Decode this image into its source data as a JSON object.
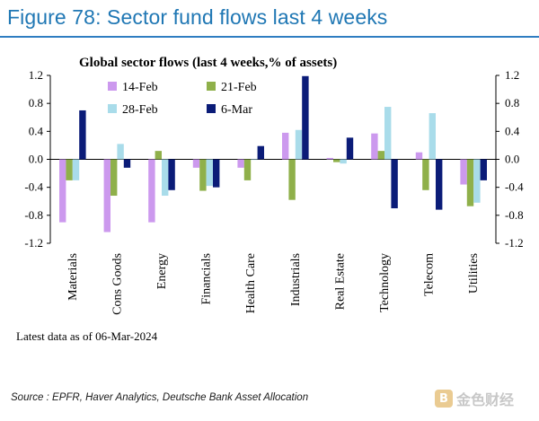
{
  "figure_title": "Figure 78: Sector fund flows last 4 weeks",
  "source": "Source : EPFR, Haver Analytics, Deutsche Bank Asset Allocation",
  "watermark": "金色财经",
  "colors": {
    "figure_title": "#1f77b4",
    "rule": "#2f7dc1",
    "14-Feb": "#cc99ee",
    "21-Feb": "#8fb04a",
    "28-Feb": "#a9dcea",
    "6-Mar": "#0b1c78"
  },
  "chart_data": {
    "type": "bar",
    "title": "Global sector flows (last 4 weeks,% of assets)",
    "xlabel": "",
    "ylabel": "",
    "ylim": [
      -1.2,
      1.2
    ],
    "yticks": [
      "1.2",
      "0.8",
      "0.4",
      "0.0",
      "-0.4",
      "-0.8",
      "-1.2"
    ],
    "ytick_values": [
      1.2,
      0.8,
      0.4,
      0.0,
      -0.4,
      -0.8,
      -1.2
    ],
    "secondary_y_axis": true,
    "grid": false,
    "legend_position": "top-left",
    "note": "Latest data as of 06-Mar-2024",
    "categories": [
      "Materials",
      "Cons Goods",
      "Energy",
      "Financials",
      "Health Care",
      "Industrials",
      "Real Estate",
      "Technology",
      "Telecom",
      "Utilities"
    ],
    "series": [
      {
        "name": "14-Feb",
        "values": [
          -0.9,
          -1.04,
          -0.9,
          -0.12,
          -0.12,
          0.38,
          0.02,
          0.37,
          0.1,
          -0.36
        ]
      },
      {
        "name": "21-Feb",
        "values": [
          -0.3,
          -0.52,
          0.12,
          -0.45,
          -0.3,
          -0.58,
          -0.04,
          0.12,
          -0.44,
          -0.67
        ]
      },
      {
        "name": "28-Feb",
        "values": [
          -0.3,
          0.22,
          -0.52,
          -0.38,
          0.0,
          0.42,
          -0.06,
          0.75,
          0.66,
          -0.62
        ]
      },
      {
        "name": "6-Mar",
        "values": [
          0.7,
          -0.12,
          -0.44,
          -0.4,
          0.19,
          1.19,
          0.31,
          -0.7,
          -0.72,
          -0.3
        ]
      }
    ]
  }
}
